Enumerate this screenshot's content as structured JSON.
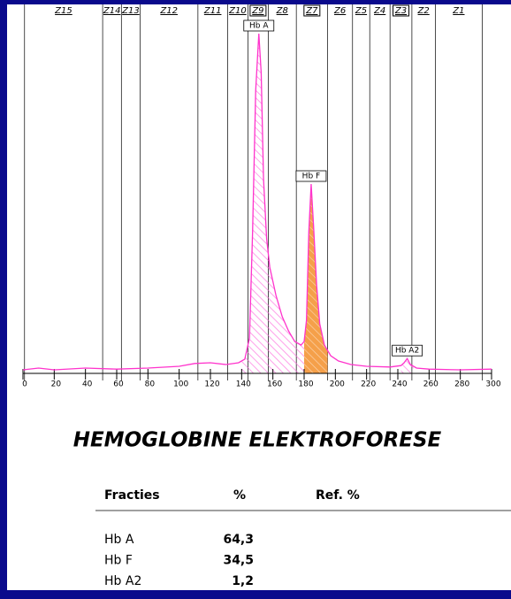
{
  "chart_data": {
    "type": "line",
    "x": [
      0,
      10,
      20,
      40,
      60,
      80,
      100,
      110,
      120,
      130,
      138,
      142,
      145,
      147,
      149,
      151,
      152.5,
      154,
      156,
      158,
      162,
      166,
      170,
      174,
      178,
      180,
      181.5,
      183,
      184.5,
      186,
      188,
      190,
      193,
      197,
      202,
      210,
      220,
      235,
      242,
      244,
      246,
      248,
      252,
      260,
      280,
      300
    ],
    "values": [
      1,
      1.5,
      1,
      1.5,
      1.2,
      1.5,
      2,
      2.8,
      3,
      2.5,
      3,
      4,
      10,
      40,
      80,
      96,
      85,
      55,
      38,
      30,
      22,
      16,
      12,
      9,
      8,
      9,
      15,
      40,
      53.5,
      42,
      25,
      14,
      8,
      5,
      3.5,
      2.5,
      2,
      1.8,
      2.2,
      3,
      4.2,
      2.5,
      1.5,
      1.2,
      1,
      1.2
    ],
    "color": "#ff33cc",
    "xlim": [
      0,
      300
    ],
    "xticks": [
      0,
      20,
      40,
      60,
      80,
      100,
      120,
      140,
      160,
      180,
      200,
      220,
      240,
      260,
      280,
      300
    ],
    "ylim": [
      0,
      100
    ],
    "zone_bounds": [
      1,
      51,
      63,
      75,
      112,
      131,
      144,
      157,
      175,
      195,
      211,
      222,
      235,
      249,
      264,
      294
    ],
    "zones": [
      {
        "label": "Z15",
        "boxed": false
      },
      {
        "label": "Z14",
        "boxed": false
      },
      {
        "label": "Z13",
        "boxed": false
      },
      {
        "label": "Z12",
        "boxed": false
      },
      {
        "label": "Z11",
        "boxed": false
      },
      {
        "label": "Z10",
        "boxed": false
      },
      {
        "label": "Z9",
        "boxed": true
      },
      {
        "label": "Z8",
        "boxed": false
      },
      {
        "label": "Z7",
        "boxed": true
      },
      {
        "label": "Z6",
        "boxed": false
      },
      {
        "label": "Z5",
        "boxed": false
      },
      {
        "label": "Z4",
        "boxed": false
      },
      {
        "label": "Z3",
        "boxed": true
      },
      {
        "label": "Z2",
        "boxed": false
      },
      {
        "label": "Z1",
        "boxed": false
      }
    ],
    "peaks": [
      {
        "label": "Hb A",
        "start": 140,
        "end": 180,
        "color": "#ff66dd"
      },
      {
        "label": "Hb F",
        "start": 180,
        "end": 195,
        "color": "#f5a04a"
      },
      {
        "label": "Hb A2",
        "start": 242,
        "end": 250,
        "color": "#ff66dd"
      }
    ]
  },
  "report": {
    "title": "HEMOGLOBINE ELEKTROFORESE",
    "table": {
      "header": [
        "Fracties",
        "%",
        "Ref. %"
      ],
      "rows": [
        [
          "Hb A",
          "64,3"
        ],
        [
          "Hb F",
          "34,5"
        ],
        [
          "Hb A2",
          "1,2"
        ]
      ]
    }
  }
}
